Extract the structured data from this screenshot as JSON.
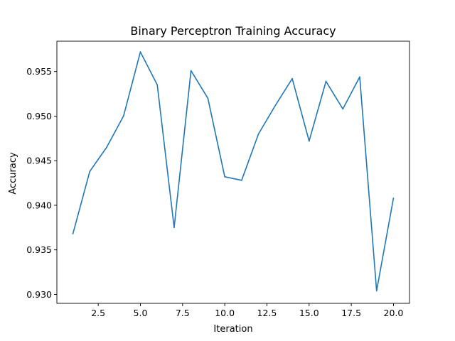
{
  "chart_data": {
    "type": "line",
    "title": "Binary Perceptron Training Accuracy",
    "xlabel": "Iteration",
    "ylabel": "Accuracy",
    "xlim": [
      0.05,
      20.95
    ],
    "ylim": [
      0.929,
      0.9584
    ],
    "grid": false,
    "x_ticks": [
      2.5,
      5.0,
      7.5,
      10.0,
      12.5,
      15.0,
      17.5,
      20.0
    ],
    "x_tick_labels": [
      "2.5",
      "5.0",
      "7.5",
      "10.0",
      "12.5",
      "15.0",
      "17.5",
      "20.0"
    ],
    "y_ticks": [
      0.93,
      0.935,
      0.94,
      0.945,
      0.95,
      0.955
    ],
    "y_tick_labels": [
      "0.930",
      "0.935",
      "0.940",
      "0.945",
      "0.950",
      "0.955"
    ],
    "series": [
      {
        "color": "#1f77b4",
        "x": [
          1,
          2,
          3,
          4,
          5,
          6,
          7,
          8,
          9,
          10,
          11,
          12,
          13,
          14,
          15,
          16,
          17,
          18,
          19,
          20
        ],
        "values": [
          0.9368,
          0.9438,
          0.9465,
          0.95,
          0.9572,
          0.9535,
          0.9375,
          0.9551,
          0.952,
          0.9432,
          0.9428,
          0.948,
          0.9512,
          0.9542,
          0.9472,
          0.9539,
          0.9508,
          0.9544,
          0.9304,
          0.9408
        ]
      }
    ]
  }
}
